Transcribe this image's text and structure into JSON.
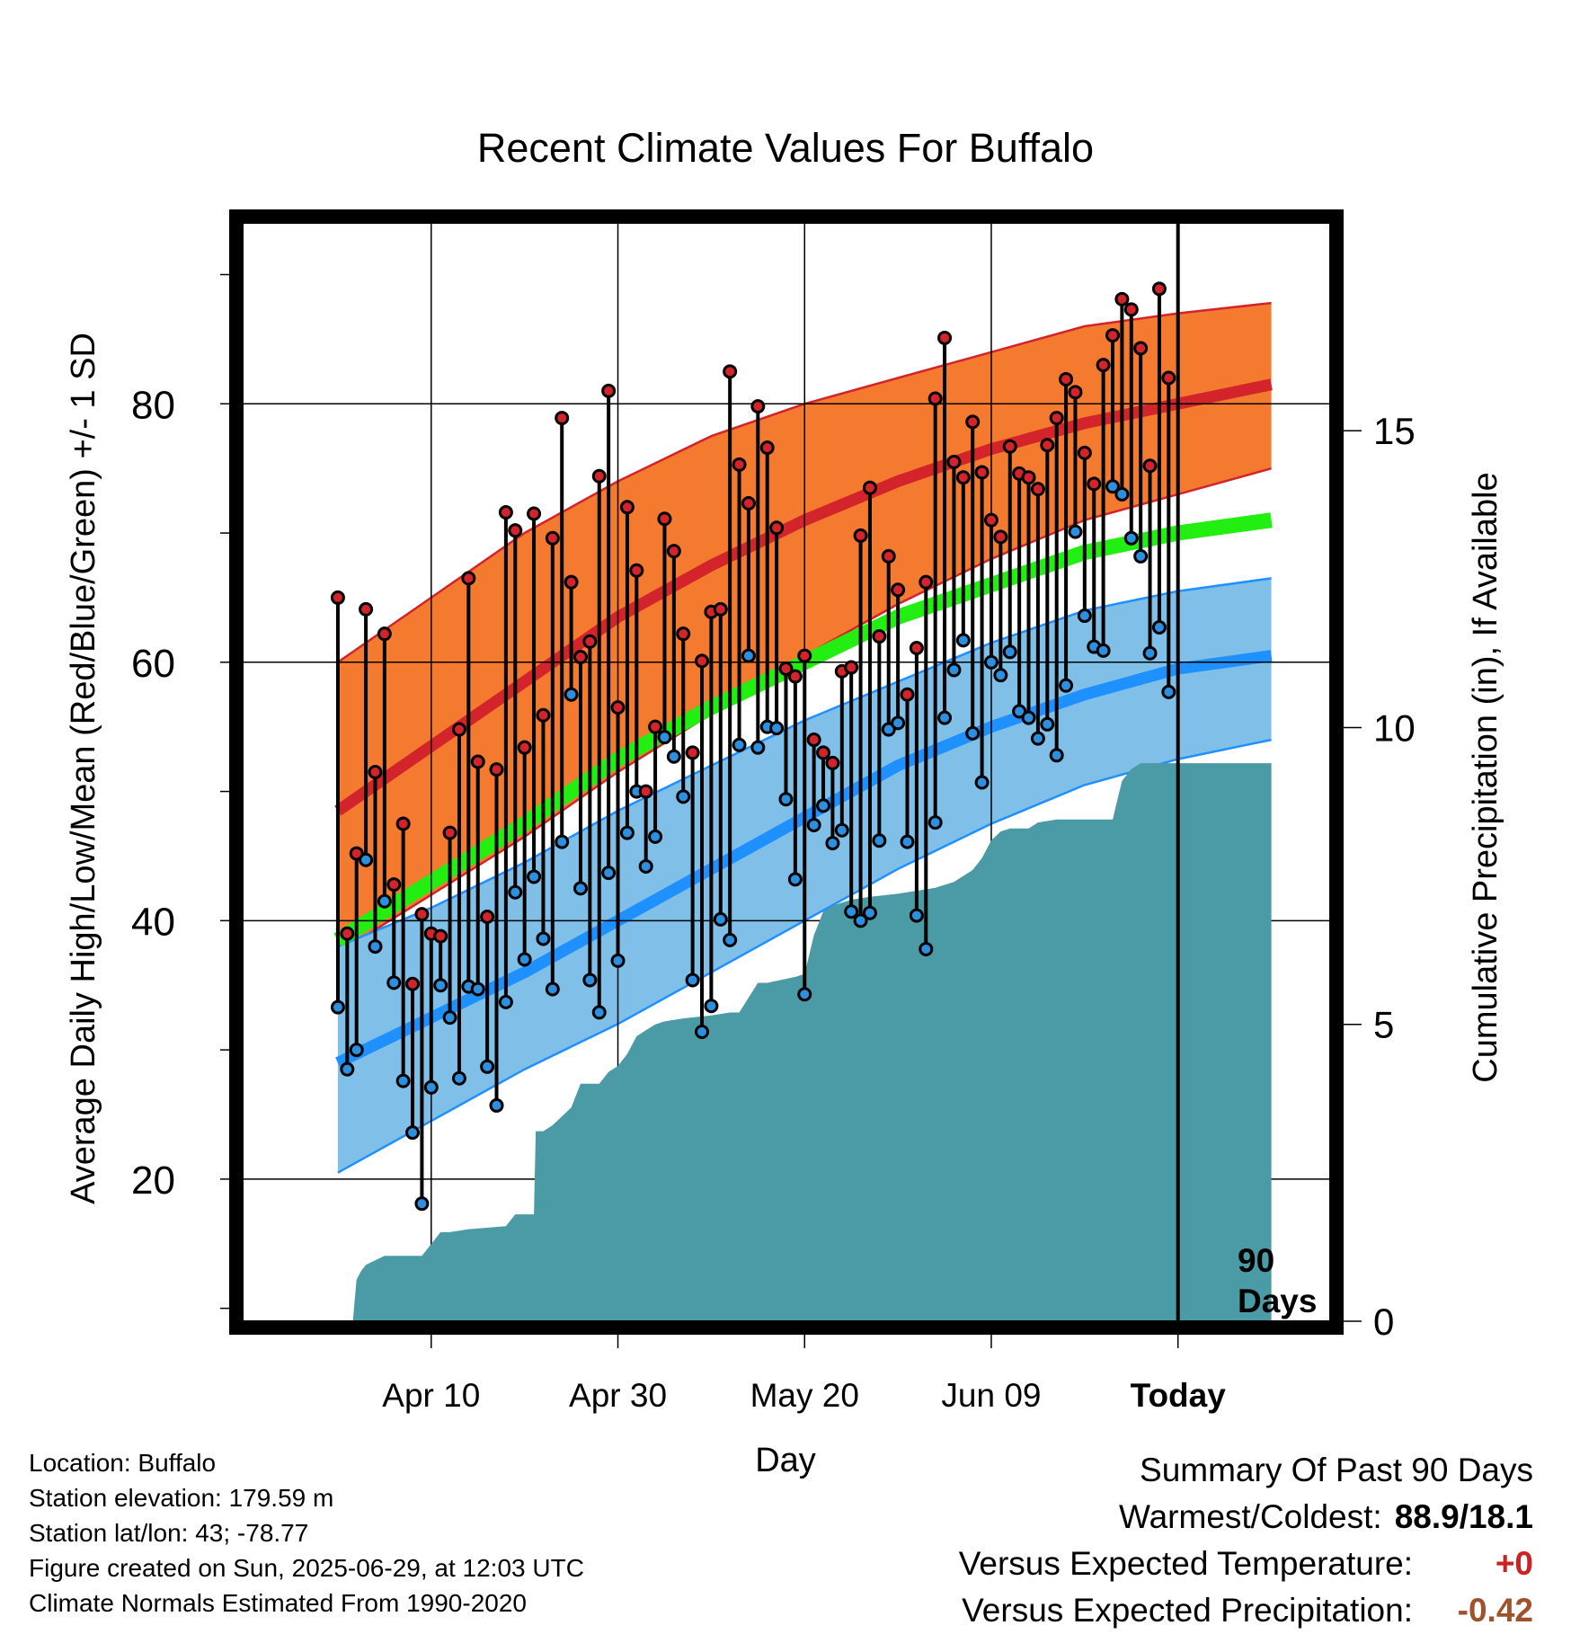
{
  "title": "Recent Climate Values For Buffalo",
  "y_left_label": "Average Daily High/Low/Mean (Red/Blue/Green) +/- 1 SD",
  "y_right_label": "Cumulative Precipitation (in), If Available",
  "x_label": "Day",
  "period_label_line1": "90",
  "period_label_line2": "Days",
  "info": {
    "location": "Location: Buffalo",
    "elevation": "Station elevation: 179.59 m",
    "latlon": "Station lat/lon: 43; -78.77",
    "created": "Figure created on Sun, 2025-06-29, at 12:03 UTC",
    "normals": "Climate Normals Estimated From 1990-2020"
  },
  "summary": {
    "heading": "Summary Of Past 90 Days",
    "warm_cold_label": "Warmest/Coldest:",
    "warm_cold_value": "88.9/18.1",
    "temp_label": "Versus Expected Temperature:",
    "temp_value": "+0",
    "precip_label": "Versus Expected Precipitation:",
    "precip_value": "-0.42"
  },
  "colors": {
    "high_band": "#f47a30",
    "high_line": "#d2242a",
    "low_band": "#80c0e8",
    "low_line": "#1e90ff",
    "mean_line": "#22ee11",
    "precip": "#4a9ba5",
    "high_dot": "#d2242a",
    "low_dot": "#2d8fe0",
    "temp_value": "#cc2222",
    "precip_value": "#a0522d"
  },
  "chart_data": {
    "type": "line",
    "x_axis": {
      "unit": "day",
      "start": "Mar 31",
      "end": "Jul 9",
      "ticks": [
        "Apr 10",
        "Apr 30",
        "May 20",
        "Jun 09",
        "Today"
      ],
      "tick_days": [
        10,
        30,
        50,
        70,
        90
      ]
    },
    "y_left": {
      "range": [
        9,
        94
      ],
      "ticks": [
        20,
        40,
        60,
        80
      ]
    },
    "y_right": {
      "range": [
        0,
        18.5
      ],
      "ticks": [
        0,
        5,
        10,
        15
      ]
    },
    "normals": {
      "day": [
        0,
        10,
        20,
        30,
        40,
        50,
        60,
        70,
        80,
        90,
        100
      ],
      "high_mean": [
        48.5,
        53.5,
        58.5,
        63.5,
        67.5,
        71.0,
        74.0,
        76.5,
        78.5,
        80.0,
        81.5
      ],
      "high_plus_sd": [
        60.0,
        65.0,
        70.0,
        74.0,
        77.5,
        80.0,
        82.0,
        84.0,
        86.0,
        87.0,
        87.8
      ],
      "high_minus_sd": [
        37.5,
        42.0,
        46.5,
        51.5,
        56.0,
        60.5,
        64.5,
        68.0,
        71.0,
        73.0,
        75.0
      ],
      "mean": [
        38.5,
        43.0,
        47.5,
        52.5,
        56.5,
        60.0,
        63.5,
        66.0,
        68.5,
        70.0,
        71.0
      ],
      "low_mean": [
        29.0,
        32.5,
        36.0,
        40.0,
        44.0,
        48.0,
        52.0,
        55.0,
        57.5,
        59.5,
        60.5
      ],
      "low_plus_sd": [
        38.0,
        41.0,
        44.5,
        48.5,
        52.0,
        55.5,
        58.5,
        61.5,
        64.0,
        65.5,
        66.5
      ],
      "low_minus_sd": [
        20.5,
        24.5,
        28.5,
        32.0,
        36.0,
        40.0,
        44.0,
        47.5,
        50.5,
        52.5,
        54.0
      ]
    },
    "daily": {
      "day": [
        0,
        1,
        2,
        3,
        4,
        5,
        6,
        7,
        8,
        9,
        10,
        11,
        12,
        13,
        14,
        15,
        16,
        17,
        18,
        19,
        20,
        21,
        22,
        23,
        24,
        25,
        26,
        27,
        28,
        29,
        30,
        31,
        32,
        33,
        34,
        35,
        36,
        37,
        38,
        39,
        40,
        41,
        42,
        43,
        44,
        45,
        46,
        47,
        48,
        49,
        50,
        51,
        52,
        53,
        54,
        55,
        56,
        57,
        58,
        59,
        60,
        61,
        62,
        63,
        64,
        65,
        66,
        67,
        68,
        69,
        70,
        71,
        72,
        73,
        74,
        75,
        76,
        77,
        78,
        79,
        80,
        81,
        82,
        83,
        84,
        85,
        86,
        87,
        88,
        89
      ],
      "high": [
        65.0,
        39.0,
        45.2,
        64.1,
        51.5,
        62.2,
        42.8,
        47.5,
        35.1,
        40.5,
        39.0,
        38.8,
        46.8,
        54.8,
        66.5,
        52.3,
        40.3,
        51.7,
        71.6,
        70.2,
        53.4,
        71.5,
        55.9,
        69.6,
        78.9,
        66.2,
        60.4,
        61.6,
        74.4,
        81.0,
        56.5,
        72.0,
        67.1,
        50.0,
        55.0,
        71.1,
        68.6,
        62.2,
        53.0,
        60.1,
        63.9,
        64.1,
        82.5,
        75.3,
        72.3,
        79.8,
        76.6,
        70.4,
        59.5,
        58.9,
        60.5,
        54.0,
        53.0,
        52.2,
        59.3,
        59.6,
        69.8,
        73.5,
        62.0,
        68.2,
        65.6,
        57.5,
        61.1,
        66.2,
        80.4,
        85.1,
        75.5,
        74.3,
        78.6,
        74.7,
        71.0,
        69.7,
        76.7,
        74.6,
        74.3,
        73.4,
        76.8,
        78.9,
        81.9,
        80.9,
        76.2,
        73.8,
        83.0,
        85.3,
        88.1,
        87.3,
        84.3,
        75.2,
        88.9,
        82.0
      ],
      "low": [
        33.3,
        28.5,
        30.0,
        44.7,
        38.0,
        41.5,
        35.2,
        27.6,
        23.6,
        18.1,
        27.1,
        35.0,
        32.5,
        27.8,
        34.9,
        34.7,
        28.7,
        25.7,
        33.7,
        42.2,
        37.0,
        43.4,
        38.6,
        34.7,
        46.1,
        57.5,
        42.5,
        35.4,
        32.9,
        43.7,
        36.9,
        46.8,
        50.0,
        44.2,
        46.5,
        54.2,
        52.7,
        49.6,
        35.4,
        31.4,
        33.4,
        40.1,
        38.5,
        53.6,
        60.5,
        53.4,
        55.0,
        54.9,
        49.4,
        43.2,
        34.3,
        47.4,
        48.9,
        46.0,
        47.0,
        40.7,
        40.0,
        40.6,
        46.2,
        54.8,
        55.3,
        46.1,
        40.4,
        37.8,
        47.6,
        55.7,
        59.4,
        61.7,
        54.5,
        50.7,
        60.0,
        59.0,
        60.8,
        56.2,
        55.7,
        54.1,
        55.2,
        52.8,
        58.2,
        70.1,
        63.6,
        61.2,
        60.9,
        73.6,
        73.0,
        69.6,
        68.2,
        60.7,
        62.7,
        57.7
      ]
    },
    "cumulative_precip": {
      "day": [
        0,
        1.6,
        2,
        2.5,
        3,
        5,
        9,
        10,
        11,
        12,
        14,
        18,
        19,
        21,
        21.2,
        22,
        23,
        25,
        26,
        28,
        29,
        30,
        31,
        32,
        33,
        34,
        35,
        37,
        40,
        42,
        43,
        45,
        46,
        49,
        50,
        51,
        52,
        53,
        55,
        57,
        60,
        62,
        64,
        66,
        68,
        69,
        70,
        71,
        72,
        74,
        75,
        77,
        78,
        80,
        83,
        84,
        85,
        86,
        87,
        88,
        89,
        90,
        100
      ],
      "inches": [
        0,
        0,
        0.7,
        0.85,
        0.95,
        1.1,
        1.1,
        1.3,
        1.5,
        1.5,
        1.55,
        1.6,
        1.8,
        1.8,
        3.2,
        3.2,
        3.3,
        3.6,
        4.0,
        4.0,
        4.2,
        4.3,
        4.5,
        4.8,
        4.9,
        5.0,
        5.05,
        5.1,
        5.15,
        5.2,
        5.2,
        5.7,
        5.7,
        5.8,
        5.85,
        6.5,
        6.9,
        7.0,
        7.1,
        7.15,
        7.2,
        7.25,
        7.3,
        7.4,
        7.6,
        7.8,
        8.1,
        8.25,
        8.3,
        8.3,
        8.4,
        8.45,
        8.45,
        8.45,
        8.45,
        9.1,
        9.3,
        9.4,
        9.4,
        9.4,
        9.4,
        9.4,
        9.4
      ]
    }
  }
}
